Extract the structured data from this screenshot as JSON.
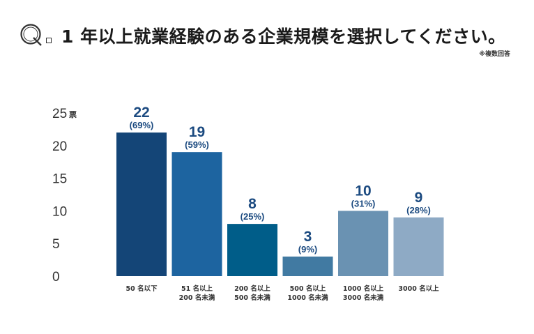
{
  "header": {
    "q_letter": "Q",
    "title": "1 年以上就業経験のある企業規模を選択してください。",
    "note": "※複数回答"
  },
  "chart_data": {
    "type": "bar",
    "categories": [
      [
        "50 名以下"
      ],
      [
        "51 名以上",
        "200 名未満"
      ],
      [
        "200 名以上",
        "500 名未満"
      ],
      [
        "500 名以上",
        "1000 名未満"
      ],
      [
        "1000 名以上",
        "3000 名未満"
      ],
      [
        "3000 名以上"
      ]
    ],
    "values": [
      22,
      19,
      8,
      3,
      10,
      9
    ],
    "percent_labels": [
      "(69%)",
      "(59%)",
      "(25%)",
      "(9%)",
      "(31%)",
      "(28%)"
    ],
    "colors": [
      "#144577",
      "#1d64a0",
      "#005d89",
      "#417aa2",
      "#6a92b2",
      "#8eaac5"
    ],
    "ylim": [
      0,
      25
    ],
    "yticks": [
      0,
      5,
      10,
      15,
      20,
      25
    ],
    "ylabel": "票",
    "grid": false
  }
}
